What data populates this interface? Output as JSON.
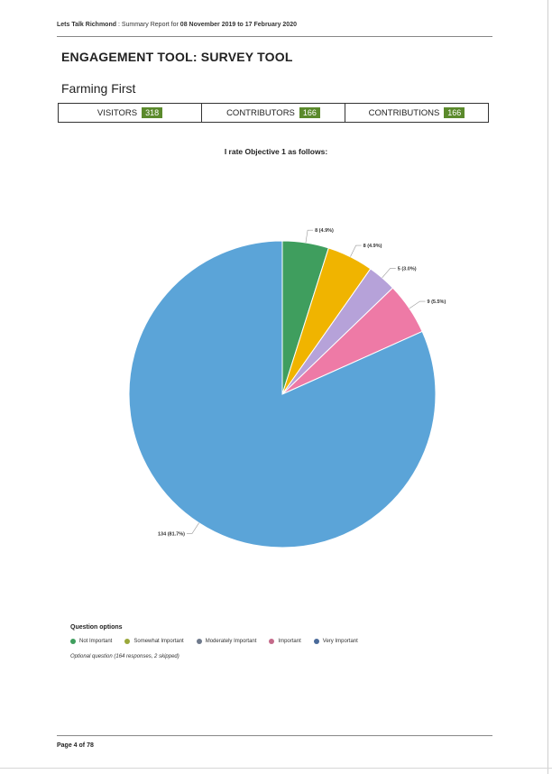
{
  "header": {
    "site": "Lets Talk Richmond",
    "text_prefix": " : Summary Report for ",
    "date_range": "08 November 2019 to 17 February 2020"
  },
  "title": "ENGAGEMENT TOOL: SURVEY TOOL",
  "subtitle": "Farming First",
  "stats": [
    {
      "label": "VISITORS",
      "value": "318"
    },
    {
      "label": "CONTRIBUTORS",
      "value": "166"
    },
    {
      "label": "CONTRIBUTIONS",
      "value": "166"
    }
  ],
  "chart_data": {
    "type": "pie",
    "title": "I rate Objective 1 as follows:",
    "start_angle_deg": 0,
    "direction": "clockwise",
    "slices": [
      {
        "name": "Not Important",
        "value": 8,
        "label": "8 (4.9%)",
        "color": "#3f9e5e"
      },
      {
        "name": "Somewhat Important",
        "value": 8,
        "label": "8 (4.9%)",
        "color": "#f0b400"
      },
      {
        "name": "Moderately Important",
        "value": 5,
        "label": "5 (3.0%)",
        "color": "#b6a2d9"
      },
      {
        "name": "Important",
        "value": 9,
        "label": "9 (5.5%)",
        "color": "#ee7aa6"
      },
      {
        "name": "Very Important",
        "value": 134,
        "label": "134 (81.7%)",
        "color": "#5ba4d8"
      }
    ]
  },
  "legend": {
    "title": "Question options",
    "items": [
      {
        "label": "Not Important",
        "color": "#3f9e5e"
      },
      {
        "label": "Somewhat Important",
        "color": "#9aa83a"
      },
      {
        "label": "Moderately Important",
        "color": "#6f7a8c"
      },
      {
        "label": "Important",
        "color": "#c46a8a"
      },
      {
        "label": "Very Important",
        "color": "#4a6a9a"
      }
    ],
    "note": "Optional question (164 responses, 2 skipped)"
  },
  "footer": {
    "page": "Page 4 of 78"
  }
}
